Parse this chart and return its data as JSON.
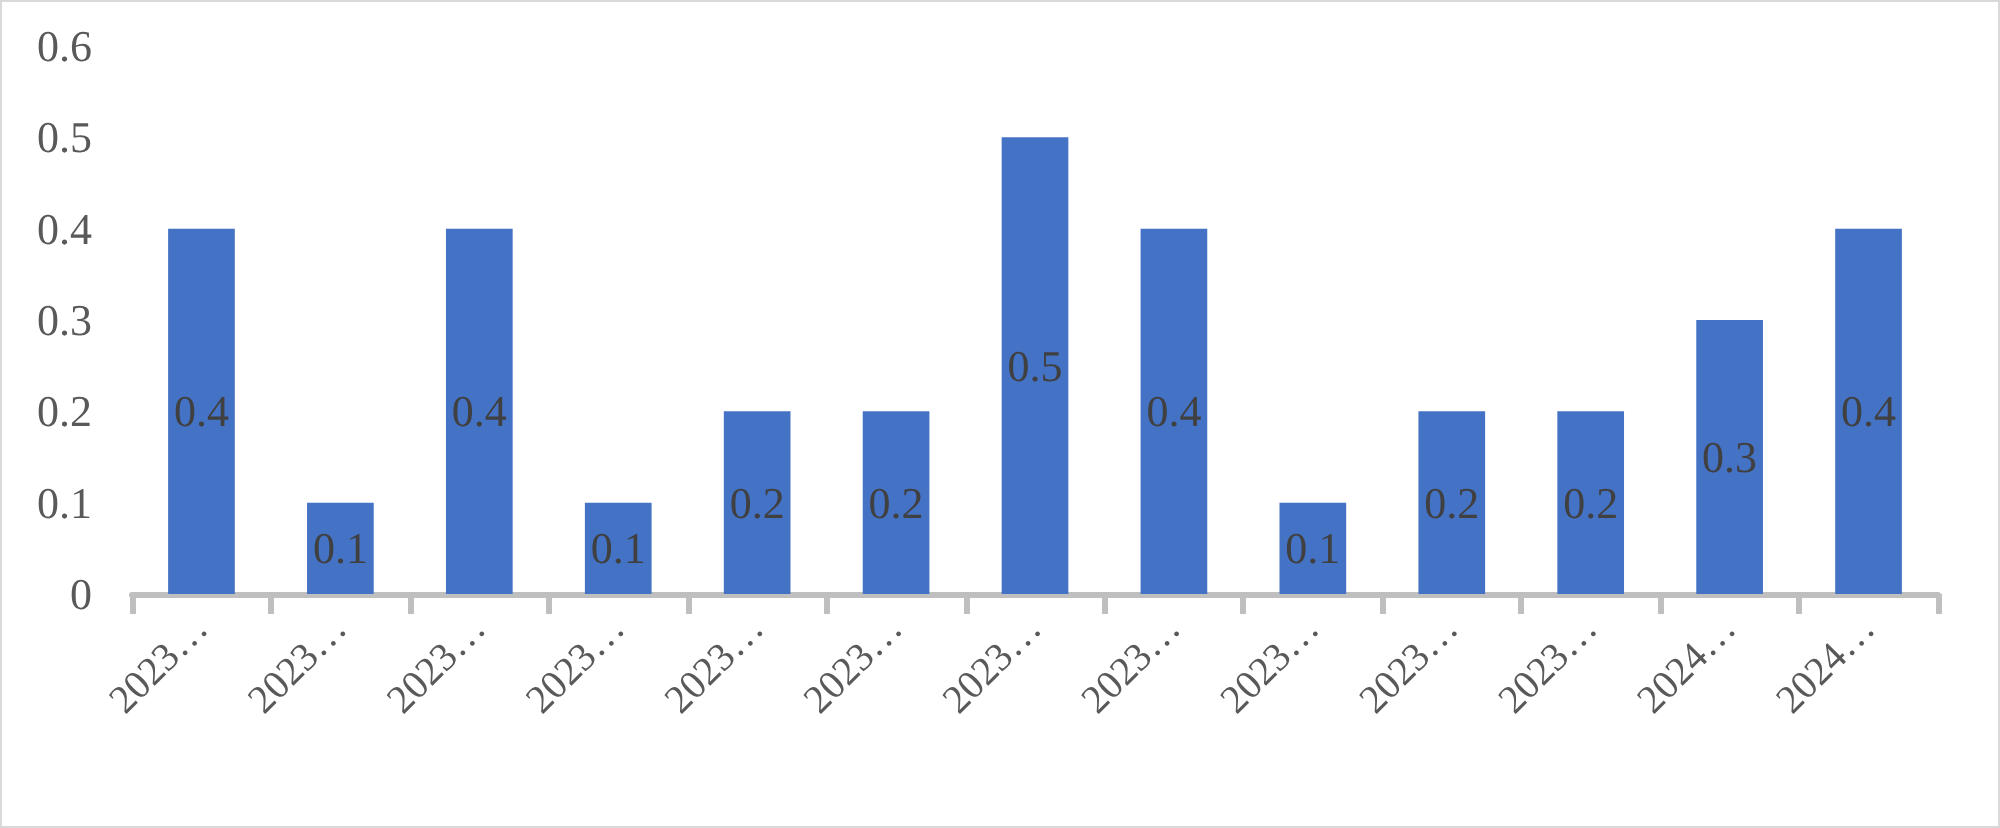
{
  "chart_data": {
    "type": "bar",
    "categories": [
      "2023…",
      "2023…",
      "2023…",
      "2023…",
      "2023…",
      "2023…",
      "2023…",
      "2023…",
      "2023…",
      "2023…",
      "2023…",
      "2024…",
      "2024…"
    ],
    "values": [
      0.4,
      0.1,
      0.4,
      0.1,
      0.2,
      0.2,
      0.5,
      0.4,
      0.1,
      0.2,
      0.2,
      0.3,
      0.4
    ],
    "color": "#4472c4",
    "ylim": [
      0,
      0.6
    ],
    "yticks": [
      0,
      0.1,
      0.2,
      0.3,
      0.4,
      0.5,
      0.6
    ],
    "data_labels": true
  }
}
